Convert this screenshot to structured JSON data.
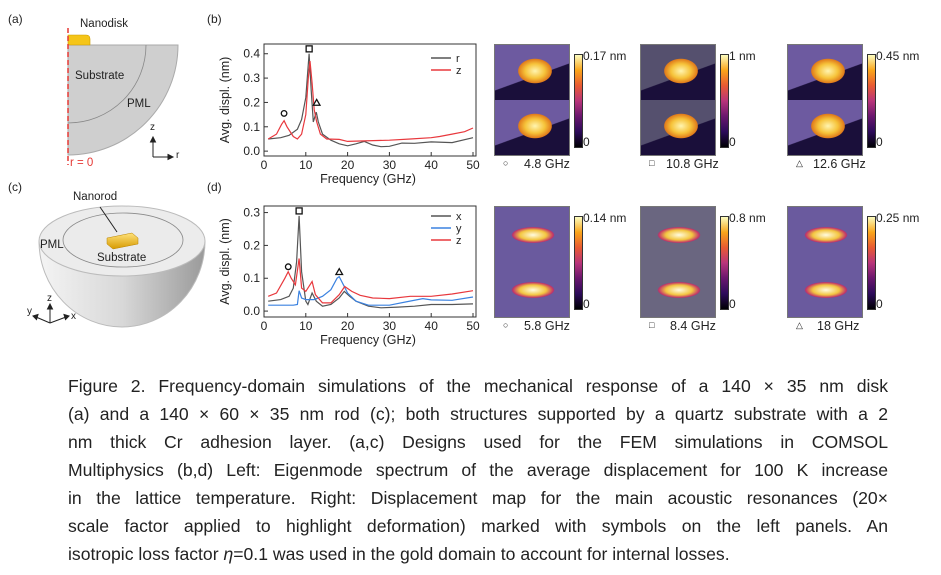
{
  "panels": {
    "a": "(a)",
    "b": "(b)",
    "c": "(c)",
    "d": "(d)"
  },
  "diagram_a": {
    "nanodisk": "Nanodisk",
    "substrate": "Substrate",
    "pml": "PML",
    "r0": "r = 0",
    "axis_z": "z",
    "axis_r": "r"
  },
  "diagram_c": {
    "nanorod": "Nanorod",
    "substrate": "Substrate",
    "pml": "PML",
    "axis_z": "z",
    "axis_y": "y",
    "axis_x": "x"
  },
  "chart_data": [
    {
      "id": "b",
      "type": "line",
      "xlabel": "Frequency (GHz)",
      "ylabel": "Avg. displ. (nm)",
      "xlim": [
        0,
        50
      ],
      "ylim": [
        -0.02,
        0.44
      ],
      "xticks": [
        0,
        10,
        20,
        30,
        40,
        50
      ],
      "yticks": [
        0.0,
        0.1,
        0.2,
        0.3,
        0.4
      ],
      "ytick_labels": [
        "0.0",
        "0.1",
        "0.2",
        "0.3",
        "0.4"
      ],
      "legend_position": "top-right",
      "series": [
        {
          "name": "r",
          "color": "#555555",
          "points": [
            [
              1,
              0.05
            ],
            [
              4,
              0.055
            ],
            [
              6,
              0.065
            ],
            [
              8,
              0.09
            ],
            [
              9,
              0.13
            ],
            [
              10,
              0.22
            ],
            [
              10.8,
              0.4
            ],
            [
              11.3,
              0.25
            ],
            [
              11.8,
              0.12
            ],
            [
              12.5,
              0.16
            ],
            [
              13,
              0.12
            ],
            [
              14,
              0.07
            ],
            [
              16,
              0.045
            ],
            [
              18,
              0.03
            ],
            [
              20,
              0.022
            ],
            [
              22,
              0.03
            ],
            [
              24,
              0.04
            ],
            [
              26,
              0.025
            ],
            [
              28,
              0.018
            ],
            [
              30,
              0.02
            ],
            [
              33,
              0.033
            ],
            [
              36,
              0.032
            ],
            [
              40,
              0.038
            ],
            [
              45,
              0.035
            ],
            [
              50,
              0.055
            ]
          ]
        },
        {
          "name": "z",
          "color": "#e8383d",
          "points": [
            [
              1,
              0.05
            ],
            [
              3,
              0.07
            ],
            [
              4.2,
              0.11
            ],
            [
              4.8,
              0.125
            ],
            [
              5.5,
              0.1
            ],
            [
              7,
              0.06
            ],
            [
              8,
              0.05
            ],
            [
              9,
              0.07
            ],
            [
              10,
              0.15
            ],
            [
              10.6,
              0.3
            ],
            [
              11,
              0.37
            ],
            [
              11.5,
              0.28
            ],
            [
              12,
              0.17
            ],
            [
              12.6,
              0.12
            ],
            [
              13.5,
              0.07
            ],
            [
              15,
              0.05
            ],
            [
              18,
              0.048
            ],
            [
              20,
              0.04
            ],
            [
              24,
              0.042
            ],
            [
              30,
              0.045
            ],
            [
              35,
              0.05
            ],
            [
              40,
              0.055
            ],
            [
              42,
              0.06
            ],
            [
              45,
              0.07
            ],
            [
              48,
              0.08
            ],
            [
              50,
              0.095
            ]
          ]
        }
      ],
      "markers": [
        {
          "symbol": "circle",
          "x": 4.8,
          "y": 0.155
        },
        {
          "symbol": "square",
          "x": 10.8,
          "y": 0.42
        },
        {
          "symbol": "triangle",
          "x": 12.6,
          "y": 0.2
        }
      ]
    },
    {
      "id": "d",
      "type": "line",
      "xlabel": "Frequency (GHz)",
      "ylabel": "Avg. displ. (nm)",
      "xlim": [
        0,
        50
      ],
      "ylim": [
        -0.018,
        0.32
      ],
      "xticks": [
        0,
        10,
        20,
        30,
        40,
        50
      ],
      "yticks": [
        0.0,
        0.1,
        0.2,
        0.3
      ],
      "ytick_labels": [
        "0.0",
        "0.1",
        "0.2",
        "0.3"
      ],
      "legend_position": "top-right",
      "series": [
        {
          "name": "x",
          "color": "#555555",
          "points": [
            [
              1,
              0.03
            ],
            [
              4,
              0.035
            ],
            [
              6,
              0.045
            ],
            [
              7,
              0.07
            ],
            [
              7.8,
              0.15
            ],
            [
              8.4,
              0.29
            ],
            [
              9,
              0.12
            ],
            [
              10,
              0.03
            ],
            [
              10.5,
              0.02
            ],
            [
              11.5,
              0.055
            ],
            [
              12.5,
              0.03
            ],
            [
              14,
              0.015
            ],
            [
              16,
              0.02
            ],
            [
              18,
              0.04
            ],
            [
              19.2,
              0.06
            ],
            [
              20.5,
              0.045
            ],
            [
              22,
              0.03
            ],
            [
              25,
              0.015
            ],
            [
              28,
              0.01
            ],
            [
              32,
              0.012
            ],
            [
              36,
              0.015
            ],
            [
              40,
              0.02
            ],
            [
              45,
              0.02
            ],
            [
              50,
              0.022
            ]
          ]
        },
        {
          "name": "y",
          "color": "#3b82e0",
          "points": [
            [
              1,
              0.018
            ],
            [
              7,
              0.018
            ],
            [
              8,
              0.02
            ],
            [
              8.4,
              0.062
            ],
            [
              9,
              0.04
            ],
            [
              10,
              0.035
            ],
            [
              12,
              0.035
            ],
            [
              14,
              0.045
            ],
            [
              16,
              0.065
            ],
            [
              17.5,
              0.1
            ],
            [
              18,
              0.105
            ],
            [
              19,
              0.08
            ],
            [
              20,
              0.055
            ],
            [
              22,
              0.03
            ],
            [
              25,
              0.018
            ],
            [
              30,
              0.018
            ],
            [
              34,
              0.028
            ],
            [
              38,
              0.038
            ],
            [
              40,
              0.034
            ],
            [
              45,
              0.033
            ],
            [
              50,
              0.043
            ]
          ]
        },
        {
          "name": "z",
          "color": "#e8383d",
          "points": [
            [
              1,
              0.045
            ],
            [
              3,
              0.055
            ],
            [
              5,
              0.1
            ],
            [
              5.8,
              0.12
            ],
            [
              6.5,
              0.1
            ],
            [
              7.5,
              0.08
            ],
            [
              8.4,
              0.16
            ],
            [
              9,
              0.07
            ],
            [
              10,
              0.06
            ],
            [
              11.5,
              0.09
            ],
            [
              12.3,
              0.05
            ],
            [
              14,
              0.025
            ],
            [
              16,
              0.025
            ],
            [
              18,
              0.05
            ],
            [
              19.3,
              0.075
            ],
            [
              21,
              0.06
            ],
            [
              23,
              0.048
            ],
            [
              26,
              0.04
            ],
            [
              30,
              0.038
            ],
            [
              35,
              0.045
            ],
            [
              40,
              0.045
            ],
            [
              45,
              0.052
            ],
            [
              50,
              0.062
            ]
          ]
        }
      ],
      "markers": [
        {
          "symbol": "circle",
          "x": 5.8,
          "y": 0.135
        },
        {
          "symbol": "square",
          "x": 8.4,
          "y": 0.305
        },
        {
          "symbol": "triangle",
          "x": 18,
          "y": 0.12
        }
      ]
    }
  ],
  "maps": [
    {
      "max": "0.17 nm",
      "min": "0",
      "freq": "4.8 GHz",
      "symbol": "○",
      "shape": "disk"
    },
    {
      "max": "1 nm",
      "min": "0",
      "freq": "10.8 GHz",
      "symbol": "□",
      "shape": "disk"
    },
    {
      "max": "0.45 nm",
      "min": "0",
      "freq": "12.6 GHz",
      "symbol": "△",
      "shape": "disk"
    },
    {
      "max": "0.14 nm",
      "min": "0",
      "freq": "5.8 GHz",
      "symbol": "○",
      "shape": "rod"
    },
    {
      "max": "0.8 nm",
      "min": "0",
      "freq": "8.4 GHz",
      "symbol": "□",
      "shape": "rod"
    },
    {
      "max": "0.25 nm",
      "min": "0",
      "freq": "18 GHz",
      "symbol": "△",
      "shape": "rod"
    }
  ],
  "caption": {
    "lines": [
      "Figure 2. Frequency-domain simulations of the mechanical response of a 140 × 35 nm disk",
      "(a) and a 140 × 60 × 35 nm rod (c); both structures supported by a quartz substrate with a 2",
      "nm thick Cr adhesion layer. (a,c) Designs used for the FEM simulations in COMSOL",
      "Multiphysics (b,d) Left: Eigenmode spectrum of the average displacement for 100 K increase",
      "in the lattice temperature. Right: Displacement map for the main acoustic resonances (20×",
      "scale factor applied to highlight deformation) marked with symbols on the left panels. An"
    ],
    "last_pre": "isotropic loss factor ",
    "last_eta": "η",
    "last_post": "=0.1 was used in the gold domain to account for internal losses."
  }
}
